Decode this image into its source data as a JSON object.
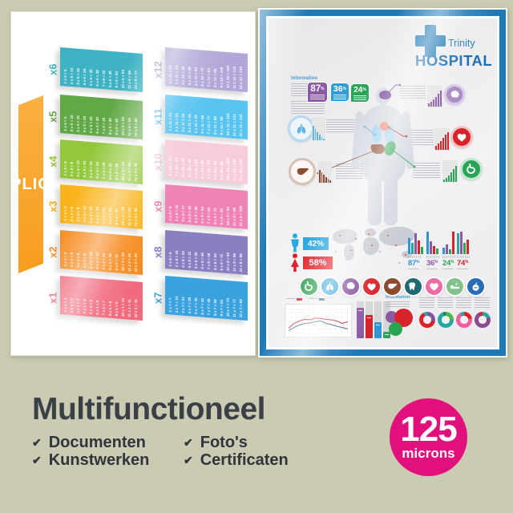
{
  "page": {
    "background": "#cacbb2"
  },
  "multiplication_poster": {
    "title": "MULTIPLICATION",
    "banner_colors": [
      "#fbb042",
      "#f79d1e"
    ],
    "range": [
      1,
      12
    ],
    "equation_template": "{n} x {f} = {p}",
    "tables": [
      {
        "label": "x6",
        "factor": 6,
        "color": "#3fb3c4"
      },
      {
        "label": "x5",
        "factor": 5,
        "color": "#61a847"
      },
      {
        "label": "x4",
        "factor": 4,
        "color": "#93c83d"
      },
      {
        "label": "x3",
        "factor": 3,
        "color": "#f9b41d"
      },
      {
        "label": "x2",
        "factor": 2,
        "color": "#f68b1f"
      },
      {
        "label": "x1",
        "factor": 1,
        "color": "#f16a7e"
      },
      {
        "label": "x12",
        "factor": 12,
        "color": "#b2a7d8"
      },
      {
        "label": "x11",
        "factor": 11,
        "color": "#59c4f0"
      },
      {
        "label": "x10",
        "factor": 10,
        "color": "#f6cdd8"
      },
      {
        "label": "x9",
        "factor": 9,
        "color": "#ef83b5"
      },
      {
        "label": "x8",
        "factor": 8,
        "color": "#8b7fc1"
      },
      {
        "label": "x7",
        "factor": 7,
        "color": "#3ba2e0"
      }
    ]
  },
  "hospital_poster": {
    "frame_color": "#1e79b8",
    "logo": {
      "brand": "Trinity",
      "title": "HOSPITAL",
      "color": "#1e79b8"
    },
    "information_label": "Information",
    "top_badges": [
      {
        "value": "87",
        "unit": "%",
        "color": "#8a5aa5"
      },
      {
        "value": "36",
        "unit": "%",
        "color": "#2e9fd4"
      },
      {
        "value": "24",
        "unit": "%",
        "color": "#2aa558"
      }
    ],
    "organ_callouts": [
      {
        "organ": "brain",
        "color": "#7d55a3"
      },
      {
        "organ": "lungs",
        "color": "#5fb4e4"
      },
      {
        "organ": "heart",
        "color": "#d8232a"
      },
      {
        "organ": "liver",
        "color": "#8c4a2f"
      },
      {
        "organ": "stomach",
        "color": "#2aa558"
      }
    ],
    "mini_charts": [
      {
        "organ": "lungs",
        "color": "#5fb4e4",
        "steps": [
          18,
          14,
          10,
          7,
          4,
          2
        ]
      },
      {
        "organ": "brain",
        "color": "#8a5aa5",
        "steps": [
          4,
          6,
          9,
          12,
          16,
          20
        ]
      },
      {
        "organ": "heart",
        "color": "#d8232a",
        "steps": [
          5,
          8,
          11,
          15,
          19,
          22
        ]
      },
      {
        "organ": "liver",
        "color": "#8c4a2f",
        "steps": [
          16,
          13,
          10,
          7,
          5,
          3
        ]
      },
      {
        "organ": "stomach",
        "color": "#2aa558",
        "steps": [
          3,
          5,
          8,
          12,
          16,
          20
        ]
      }
    ],
    "gender_split": [
      {
        "gender": "male",
        "value": "42%",
        "color": "#29a8e0"
      },
      {
        "gender": "female",
        "value": "58%",
        "color": "#e31e26"
      }
    ],
    "stat_groups": [
      {
        "label": "87",
        "unit": "%",
        "color": "#2e97d3",
        "bars": [
          [
            "#2e97d3",
            20
          ],
          [
            "#2aa6a2",
            14
          ],
          [
            "#8a5aa5",
            26
          ],
          [
            "#d8232a",
            17
          ],
          [
            "#2aa558",
            9
          ]
        ]
      },
      {
        "label": "36",
        "unit": "%",
        "color": "#8a5aa5",
        "bars": [
          [
            "#2e97d3",
            28
          ],
          [
            "#8a5aa5",
            16
          ],
          [
            "#d8232a",
            10
          ],
          [
            "#2aa558",
            7
          ]
        ]
      },
      {
        "label": "24",
        "unit": "%",
        "color": "#2aa558",
        "bars": [
          [
            "#2e97d3",
            8
          ],
          [
            "#8a5aa5",
            12
          ],
          [
            "#2aa558",
            6
          ],
          [
            "#d8232a",
            28
          ]
        ]
      },
      {
        "label": "74",
        "unit": "%",
        "color": "#d8232a",
        "bars": [
          [
            "#2aa6a2",
            26
          ],
          [
            "#8a5aa5",
            28
          ],
          [
            "#2aa558",
            14
          ],
          [
            "#d8232a",
            18
          ]
        ]
      }
    ],
    "organ_icon_row": [
      {
        "organ": "stomach",
        "color": "#2f9e50"
      },
      {
        "organ": "lungs",
        "color": "#3fa9dc"
      },
      {
        "organ": "brain",
        "color": "#8a5aa5"
      },
      {
        "organ": "heart-organ",
        "color": "#d8232a"
      },
      {
        "organ": "liver",
        "color": "#8c4a2f"
      },
      {
        "organ": "tooth",
        "color": "#1d6a73"
      },
      {
        "organ": "heart",
        "color": "#ed6ea6"
      },
      {
        "organ": "bed",
        "color": "#83c28d"
      },
      {
        "organ": "apple",
        "color": "#2a6db5"
      }
    ],
    "line_chart": {
      "series": [
        {
          "name": "series-red",
          "color": "#d8232a",
          "values": [
            0.25,
            0.45,
            0.55,
            0.62,
            0.6,
            0.68,
            0.65,
            0.62,
            0.6,
            0.55,
            0.45,
            0.52
          ]
        },
        {
          "name": "series-blue",
          "color": "#33618d",
          "values": [
            0.15,
            0.28,
            0.38,
            0.45,
            0.47,
            0.52,
            0.55,
            0.45,
            0.4,
            0.33,
            0.28,
            0.22
          ]
        }
      ]
    },
    "progress_bars": [
      {
        "color": "#8a5aa5",
        "pct": 82
      },
      {
        "color": "#d8232a",
        "pct": 64
      },
      {
        "color": "#2e97d3",
        "pct": 44
      },
      {
        "color": "#2aa558",
        "pct": 18
      }
    ],
    "bubbles": [
      {
        "color": "#8a5aa5",
        "size": 15
      },
      {
        "color": "#d8232a",
        "size": 23
      },
      {
        "color": "#2aa54f",
        "size": 17
      }
    ],
    "donuts": [
      {
        "segments": [
          [
            "#7d55a3",
            100
          ],
          [
            "#d8232a",
            230
          ],
          [
            "#2aa6a2",
            30
          ]
        ]
      },
      {
        "segments": [
          [
            "#49b749",
            90
          ],
          [
            "#2aa6a2",
            250
          ],
          [
            "#1f7a4d",
            20
          ]
        ]
      },
      {
        "segments": [
          [
            "#d8232a",
            80
          ],
          [
            "#ed5f9a",
            250
          ],
          [
            "#2aa6a2",
            30
          ]
        ]
      },
      {
        "segments": [
          [
            "#2aa6a2",
            70
          ],
          [
            "#8a4a8f",
            260
          ],
          [
            "#d8232a",
            30
          ]
        ]
      }
    ]
  },
  "footer": {
    "headline": "Multifunctioneel",
    "check_icon": "✔",
    "features": [
      {
        "label": "Documenten"
      },
      {
        "label": "Kunstwerken"
      },
      {
        "label": "Foto's"
      },
      {
        "label": "Certificaten"
      }
    ],
    "badge": {
      "value": "125",
      "unit": "microns",
      "color": "#e2107c"
    }
  }
}
